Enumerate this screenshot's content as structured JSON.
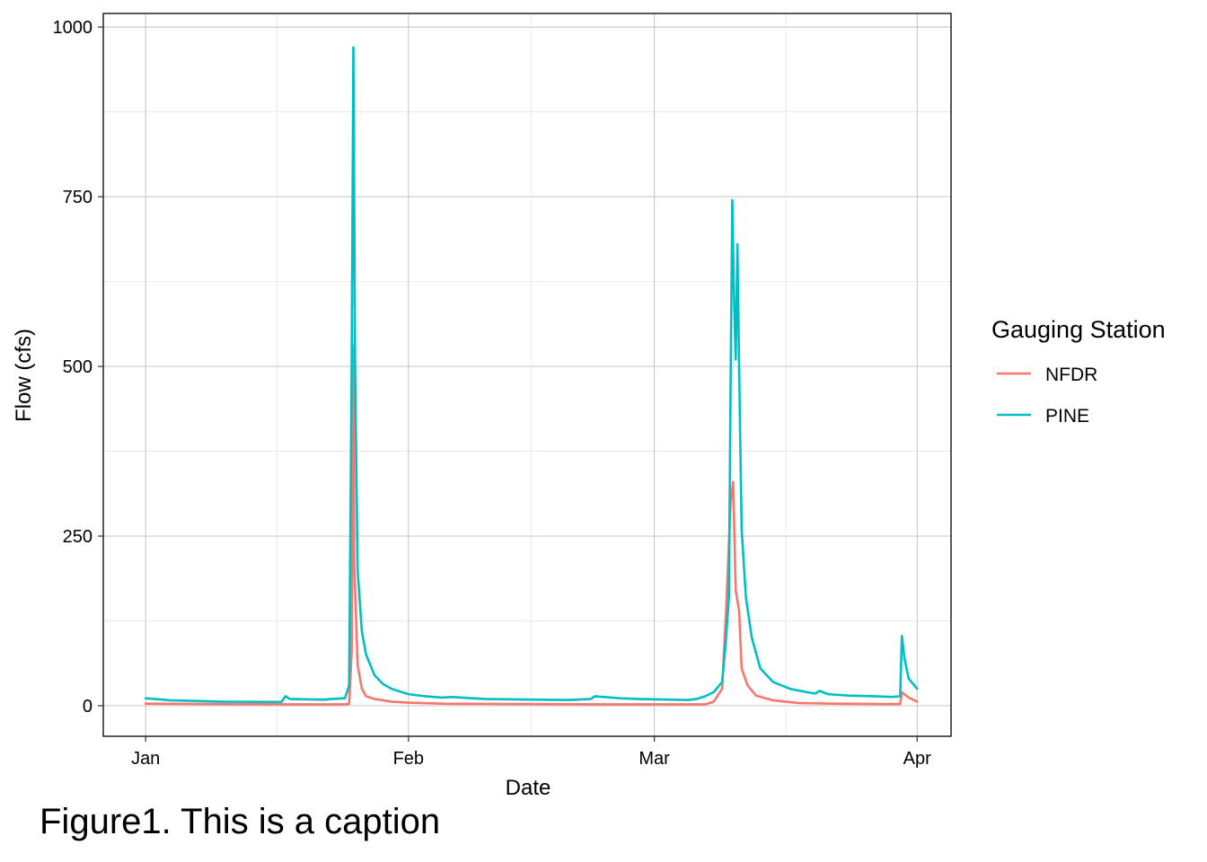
{
  "caption": "Figure1. This is a caption",
  "chart_data": {
    "type": "line",
    "xlabel": "Date",
    "ylabel": "Flow (cfs)",
    "x_ticks": [
      "Jan",
      "Feb",
      "Mar",
      "Apr"
    ],
    "x_tick_dates": [
      "2020-01-01",
      "2020-02-01",
      "2020-03-01",
      "2020-04-01"
    ],
    "xlim": [
      "2019-12-27",
      "2020-04-05"
    ],
    "y_ticks": [
      0,
      250,
      500,
      750,
      1000
    ],
    "ylim": [
      -45,
      1020
    ],
    "grid": true,
    "legend_title": "Gauging Station",
    "legend_position": "right",
    "series": [
      {
        "name": "NFDR",
        "color": "#F8766D",
        "points": [
          [
            "2020-01-01",
            3
          ],
          [
            "2020-01-08",
            2.5
          ],
          [
            "2020-01-17",
            2
          ],
          [
            "2020-01-24",
            2
          ],
          [
            "2020-01-25",
            2.5
          ],
          [
            "2020-01-25.3",
            80
          ],
          [
            "2020-01-25.5",
            530
          ],
          [
            "2020-01-25.6",
            210
          ],
          [
            "2020-01-26",
            60
          ],
          [
            "2020-01-26.5",
            25
          ],
          [
            "2020-01-27",
            14
          ],
          [
            "2020-01-28",
            10
          ],
          [
            "2020-01-30",
            6
          ],
          [
            "2020-02-01",
            4.5
          ],
          [
            "2020-02-05",
            3
          ],
          [
            "2020-02-15",
            2.5
          ],
          [
            "2020-02-25",
            2
          ],
          [
            "2020-03-07",
            2
          ],
          [
            "2020-03-08",
            6
          ],
          [
            "2020-03-09",
            25
          ],
          [
            "2020-03-09.5",
            150
          ],
          [
            "2020-03-10",
            300
          ],
          [
            "2020-03-10.3",
            330
          ],
          [
            "2020-03-10.6",
            170
          ],
          [
            "2020-03-11",
            140
          ],
          [
            "2020-03-11.3",
            55
          ],
          [
            "2020-03-12",
            30
          ],
          [
            "2020-03-13",
            15
          ],
          [
            "2020-03-15",
            8
          ],
          [
            "2020-03-18",
            4
          ],
          [
            "2020-03-22",
            3
          ],
          [
            "2020-03-28",
            2.5
          ],
          [
            "2020-03-30",
            2.5
          ],
          [
            "2020-03-30.2",
            20
          ],
          [
            "2020-03-31",
            12
          ],
          [
            "2020-04-01",
            6
          ]
        ]
      },
      {
        "name": "PINE",
        "color": "#00BFC4",
        "points": [
          [
            "2020-01-01",
            11
          ],
          [
            "2020-01-04",
            8
          ],
          [
            "2020-01-10",
            6
          ],
          [
            "2020-01-17",
            5.5
          ],
          [
            "2020-01-17.5",
            14
          ],
          [
            "2020-01-18",
            10
          ],
          [
            "2020-01-20",
            9.5
          ],
          [
            "2020-01-22",
            9
          ],
          [
            "2020-01-23",
            10
          ],
          [
            "2020-01-24.5",
            11
          ],
          [
            "2020-01-25",
            30
          ],
          [
            "2020-01-25.3",
            500
          ],
          [
            "2020-01-25.5",
            970
          ],
          [
            "2020-01-25.7",
            500
          ],
          [
            "2020-01-26",
            200
          ],
          [
            "2020-01-26.5",
            110
          ],
          [
            "2020-01-27",
            75
          ],
          [
            "2020-01-28",
            45
          ],
          [
            "2020-01-29",
            32
          ],
          [
            "2020-01-30",
            25
          ],
          [
            "2020-01-31",
            21
          ],
          [
            "2020-02-01",
            17
          ],
          [
            "2020-02-03",
            14
          ],
          [
            "2020-02-05",
            12
          ],
          [
            "2020-02-06",
            13
          ],
          [
            "2020-02-10",
            10
          ],
          [
            "2020-02-16",
            9
          ],
          [
            "2020-02-20",
            8.5
          ],
          [
            "2020-02-22.5",
            10
          ],
          [
            "2020-02-23",
            14
          ],
          [
            "2020-02-26",
            11
          ],
          [
            "2020-02-28",
            10
          ],
          [
            "2020-03-03",
            9
          ],
          [
            "2020-03-05",
            8.5
          ],
          [
            "2020-03-06",
            10
          ],
          [
            "2020-03-07",
            14
          ],
          [
            "2020-03-08",
            20
          ],
          [
            "2020-03-09",
            35
          ],
          [
            "2020-03-09.4",
            90
          ],
          [
            "2020-03-09.8",
            160
          ],
          [
            "2020-03-10",
            480
          ],
          [
            "2020-03-10.2",
            745
          ],
          [
            "2020-03-10.4",
            600
          ],
          [
            "2020-03-10.6",
            510
          ],
          [
            "2020-03-10.8",
            680
          ],
          [
            "2020-03-11",
            500
          ],
          [
            "2020-03-11.3",
            260
          ],
          [
            "2020-03-11.8",
            160
          ],
          [
            "2020-03-12.5",
            100
          ],
          [
            "2020-03-13.5",
            55
          ],
          [
            "2020-03-15",
            35
          ],
          [
            "2020-03-17",
            25
          ],
          [
            "2020-03-19",
            20
          ],
          [
            "2020-03-20",
            18
          ],
          [
            "2020-03-20.5",
            22
          ],
          [
            "2020-03-21.5",
            17
          ],
          [
            "2020-03-24",
            15
          ],
          [
            "2020-03-27",
            14
          ],
          [
            "2020-03-29",
            13
          ],
          [
            "2020-03-30",
            14
          ],
          [
            "2020-03-30.2",
            103
          ],
          [
            "2020-03-30.5",
            70
          ],
          [
            "2020-03-31",
            40
          ],
          [
            "2020-04-01",
            25
          ]
        ]
      }
    ]
  }
}
